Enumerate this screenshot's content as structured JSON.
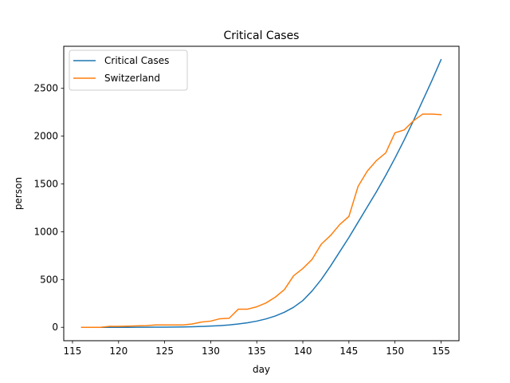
{
  "chart_data": {
    "type": "line",
    "title": "Critical Cases",
    "xlabel": "day",
    "ylabel": "person",
    "xlim": [
      114.05,
      156.95
    ],
    "ylim": [
      -140,
      2940
    ],
    "xticks": [
      115,
      120,
      125,
      130,
      135,
      140,
      145,
      150,
      155
    ],
    "yticks": [
      0,
      500,
      1000,
      1500,
      2000,
      2500
    ],
    "grid": false,
    "legend_position": "top-left",
    "series": [
      {
        "name": "Critical Cases",
        "color": "#1f77b4",
        "x": [
          116,
          117,
          118,
          119,
          120,
          121,
          122,
          123,
          124,
          125,
          126,
          127,
          128,
          129,
          130,
          131,
          132,
          133,
          134,
          135,
          136,
          137,
          138,
          139,
          140,
          141,
          142,
          143,
          144,
          145,
          146,
          147,
          148,
          149,
          150,
          151,
          152,
          153,
          154,
          155
        ],
        "y": [
          0,
          0,
          0,
          0,
          0,
          0,
          1,
          1,
          2,
          2,
          3,
          4,
          6,
          9,
          13,
          18,
          25,
          35,
          48,
          65,
          88,
          118,
          158,
          210,
          280,
          380,
          500,
          640,
          790,
          940,
          1100,
          1260,
          1420,
          1590,
          1770,
          1960,
          2160,
          2370,
          2580,
          2800
        ]
      },
      {
        "name": "Switzerland",
        "color": "#ff7f0e",
        "x": [
          116,
          117,
          118,
          119,
          120,
          121,
          122,
          123,
          124,
          125,
          126,
          127,
          128,
          129,
          130,
          131,
          132,
          133,
          134,
          135,
          136,
          137,
          138,
          139,
          140,
          141,
          142,
          143,
          144,
          145,
          146,
          147,
          148,
          149,
          150,
          151,
          152,
          153,
          154,
          155
        ],
        "y": [
          0,
          0,
          0,
          10,
          10,
          12,
          15,
          18,
          25,
          25,
          25,
          25,
          35,
          55,
          65,
          90,
          95,
          190,
          190,
          215,
          255,
          315,
          395,
          540,
          615,
          710,
          870,
          960,
          1075,
          1160,
          1475,
          1635,
          1745,
          1825,
          2035,
          2065,
          2160,
          2230,
          2230,
          2225
        ]
      }
    ]
  }
}
